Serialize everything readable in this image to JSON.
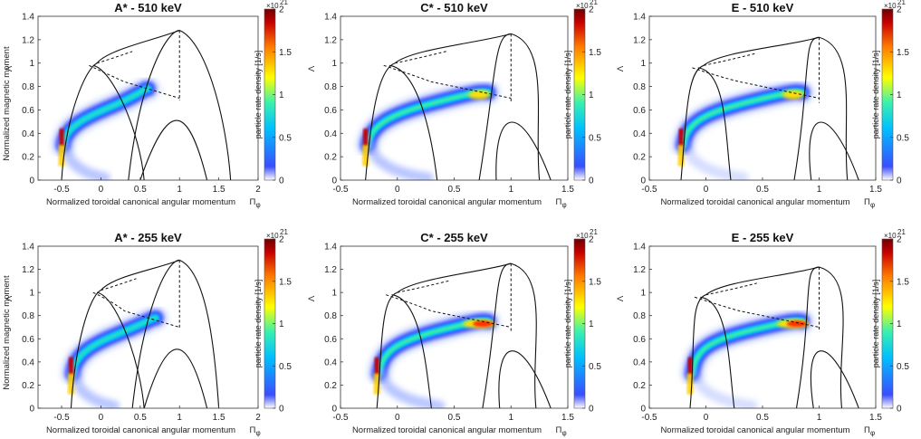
{
  "figure": {
    "colorbar_label": "particle rate density [1/s]",
    "colorbar_exponent": "×10",
    "colorbar_exponent_power": "21",
    "colorbar_ticks": [
      "0",
      "0.5",
      "1",
      "1.5",
      "2"
    ],
    "colormap": [
      "#ffffff",
      "#3a4dff",
      "#00bfff",
      "#38f0b0",
      "#ffff00",
      "#ff7a00",
      "#c80000",
      "#6e0000"
    ]
  },
  "chart_data": [
    {
      "type": "heatmap",
      "title": "A* - 510 keV",
      "xlabel": "Normalized toroidal canonical angular momentum",
      "ylabel": "Normalized magnetic moment",
      "xlim": [
        -0.8,
        2
      ],
      "ylim": [
        0,
        1.4
      ],
      "xticks": [
        "-0.5",
        "0",
        "0.5",
        "1",
        "1.5",
        "2"
      ],
      "yticks": [
        "0",
        "0.2",
        "0.4",
        "0.6",
        "0.8",
        "1",
        "1.2",
        "1.4"
      ],
      "colorbar_range": [
        0,
        2
      ],
      "boundary": {
        "left_x": -0.5,
        "cusp": [
          -0.05,
          1.0
        ],
        "top": [
          1.0,
          1.28
        ],
        "mid_y": 0.68,
        "right_x": 1.65,
        "inner_right_x": 0.55,
        "inner_left_x": 0.35
      }
    },
    {
      "type": "heatmap",
      "title": "C* - 510 keV",
      "xlabel": "Normalized toroidal canonical angular momentum",
      "ylabel": "",
      "xlim": [
        -0.5,
        1.5
      ],
      "ylim": [
        0,
        1.4
      ],
      "xticks": [
        "-0.5",
        "0",
        "0.5",
        "1",
        "1.5"
      ],
      "yticks": [
        "0",
        "0.2",
        "0.4",
        "0.6",
        "0.8",
        "1",
        "1.2",
        "1.4"
      ],
      "colorbar_range": [
        0,
        2
      ],
      "boundary": {
        "left_x": -0.28,
        "cusp": [
          -0.02,
          1.0
        ],
        "top": [
          1.0,
          1.25
        ],
        "mid_y": 0.66,
        "right_x": 1.25,
        "inner_right_x": 0.35,
        "inner_left_x": 0.72
      }
    },
    {
      "type": "heatmap",
      "title": "E - 510 keV",
      "xlabel": "Normalized toroidal canonical angular momentum",
      "ylabel": "",
      "xlim": [
        -0.5,
        1.5
      ],
      "ylim": [
        0,
        1.4
      ],
      "xticks": [
        "-0.5",
        "0",
        "0.5",
        "1",
        "1.5"
      ],
      "yticks": [
        "0",
        "0.2",
        "0.4",
        "0.6",
        "0.8",
        "1",
        "1.2",
        "1.4"
      ],
      "colorbar_range": [
        0,
        2
      ],
      "boundary": {
        "left_x": -0.22,
        "cusp": [
          -0.02,
          0.98
        ],
        "top": [
          1.0,
          1.22
        ],
        "mid_y": 0.66,
        "right_x": 1.25,
        "inner_right_x": 0.22,
        "inner_left_x": 0.78
      }
    },
    {
      "type": "heatmap",
      "title": "A* - 255 keV",
      "xlabel": "Normalized toroidal canonical angular momentum",
      "ylabel": "Normalized magnetic moment",
      "xlim": [
        -0.8,
        2
      ],
      "ylim": [
        0,
        1.4
      ],
      "xticks": [
        "-0.5",
        "0",
        "0.5",
        "1",
        "1.5",
        "2"
      ],
      "yticks": [
        "0",
        "0.2",
        "0.4",
        "0.6",
        "0.8",
        "1",
        "1.2",
        "1.4"
      ],
      "colorbar_range": [
        0,
        2
      ],
      "boundary": {
        "left_x": -0.38,
        "cusp": [
          0.0,
          1.02
        ],
        "top": [
          1.0,
          1.28
        ],
        "mid_y": 0.68,
        "right_x": 1.5,
        "inner_right_x": 0.55,
        "inner_left_x": 0.4
      }
    },
    {
      "type": "heatmap",
      "title": "C* - 255 keV",
      "xlabel": "Normalized toroidal canonical angular momentum",
      "ylabel": "",
      "xlim": [
        -0.5,
        1.5
      ],
      "ylim": [
        0,
        1.4
      ],
      "xticks": [
        "-0.5",
        "0",
        "0.5",
        "1",
        "1.5"
      ],
      "yticks": [
        "0",
        "0.2",
        "0.4",
        "0.6",
        "0.8",
        "1",
        "1.2",
        "1.4"
      ],
      "colorbar_range": [
        0,
        2
      ],
      "boundary": {
        "left_x": -0.18,
        "cusp": [
          0.0,
          1.0
        ],
        "top": [
          1.0,
          1.25
        ],
        "mid_y": 0.66,
        "right_x": 1.22,
        "inner_right_x": 0.3,
        "inner_left_x": 0.75
      }
    },
    {
      "type": "heatmap",
      "title": "E - 255 keV",
      "xlabel": "Normalized toroidal canonical angular momentum",
      "ylabel": "",
      "xlim": [
        -0.5,
        1.5
      ],
      "ylim": [
        0,
        1.4
      ],
      "xticks": [
        "-0.5",
        "0",
        "0.5",
        "1",
        "1.5"
      ],
      "yticks": [
        "0",
        "0.2",
        "0.4",
        "0.6",
        "0.8",
        "1",
        "1.2",
        "1.4"
      ],
      "colorbar_range": [
        0,
        2
      ],
      "boundary": {
        "left_x": -0.14,
        "cusp": [
          0.0,
          0.98
        ],
        "top": [
          1.0,
          1.22
        ],
        "mid_y": 0.66,
        "right_x": 1.2,
        "inner_right_x": 0.25,
        "inner_left_x": 0.8
      }
    }
  ]
}
